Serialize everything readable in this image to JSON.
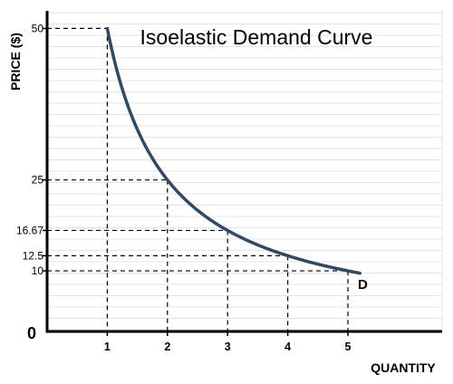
{
  "chart_data": {
    "type": "line",
    "title": "Isoelastic Demand Curve",
    "xlabel": "QUANTITY",
    "ylabel": "PRICE ($)",
    "origin_label": "0",
    "xlim": [
      0,
      5.6
    ],
    "ylim": [
      0,
      52.9
    ],
    "grid": true,
    "x_ticks": [
      {
        "value": 1,
        "label": "1"
      },
      {
        "value": 2,
        "label": "2"
      },
      {
        "value": 3,
        "label": "3"
      },
      {
        "value": 4,
        "label": "4"
      },
      {
        "value": 5,
        "label": "5"
      }
    ],
    "y_ticks": [
      {
        "value": 50,
        "label": "50"
      },
      {
        "value": 25,
        "label": "25"
      },
      {
        "value": 16.67,
        "label": "16.67"
      },
      {
        "value": 12.5,
        "label": "12.5"
      },
      {
        "value": 10,
        "label": "10"
      }
    ],
    "points": [
      {
        "x": 1,
        "y": 50
      },
      {
        "x": 2,
        "y": 25
      },
      {
        "x": 3,
        "y": 16.67
      },
      {
        "x": 4,
        "y": 12.5
      },
      {
        "x": 5,
        "y": 10
      }
    ],
    "series": [
      {
        "name": "D",
        "function": "P = 50 / Q",
        "x_range": [
          1,
          5.2
        ],
        "color": "#2c4a6a"
      }
    ],
    "colors": {
      "curve": "#2c4a6a",
      "axis": "#000000",
      "grid": "#e3e3e3",
      "guide": "#000000"
    }
  }
}
